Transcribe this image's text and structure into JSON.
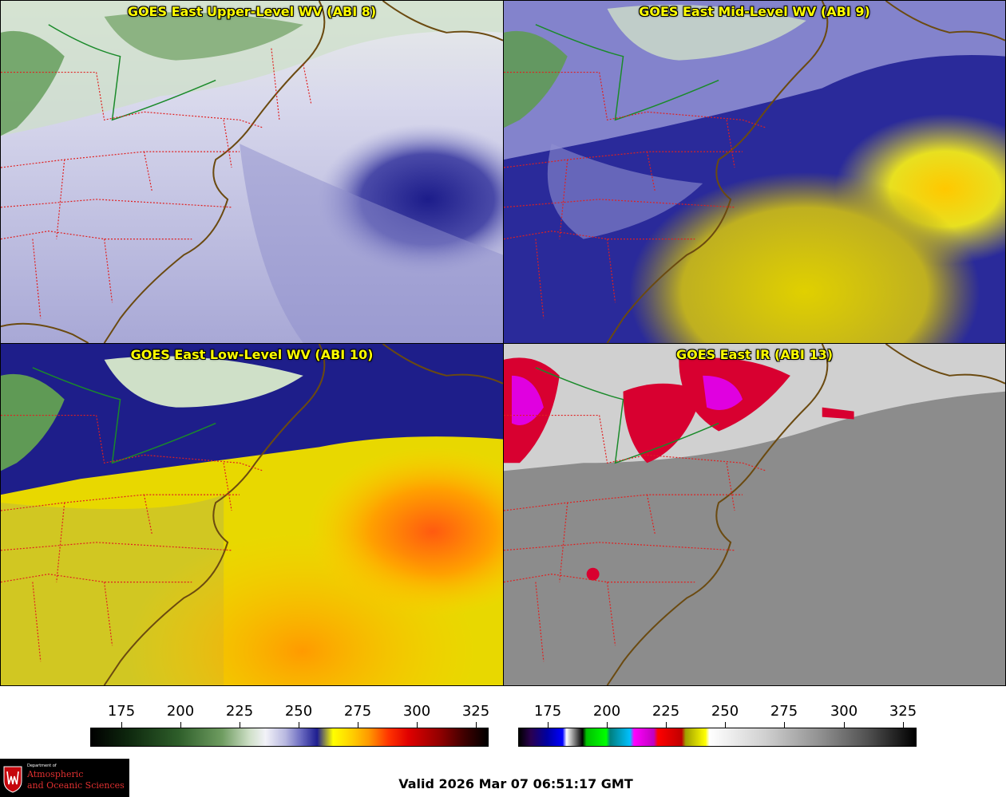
{
  "panels": [
    {
      "title": "GOES East Upper-Level WV (ABI 8)",
      "channel": "ABI 8",
      "colormap": "wv"
    },
    {
      "title": "GOES East Mid-Level WV (ABI 9)",
      "channel": "ABI 9",
      "colormap": "wv"
    },
    {
      "title": "GOES East Low-Level WV (ABI 10)",
      "channel": "ABI 10",
      "colormap": "wv"
    },
    {
      "title": "GOES East IR (ABI 13)",
      "channel": "ABI 13",
      "colormap": "ir"
    }
  ],
  "colorbars": [
    {
      "name": "wv",
      "ticks": [
        "175",
        "200",
        "225",
        "250",
        "275",
        "300",
        "325"
      ]
    },
    {
      "name": "ir",
      "ticks": [
        "175",
        "200",
        "225",
        "250",
        "275",
        "300",
        "325"
      ]
    }
  ],
  "logo": {
    "line1": "Department of",
    "line2": "Atmospheric",
    "line3": "and Oceanic Sciences"
  },
  "valid_time": "Valid 2026 Mar 07 06:51:17 GMT",
  "colors": {
    "title_text": "#ffff00",
    "coastline": "#6b4a10",
    "state_borders": "#e02020",
    "international_border": "#1a8a2a"
  }
}
